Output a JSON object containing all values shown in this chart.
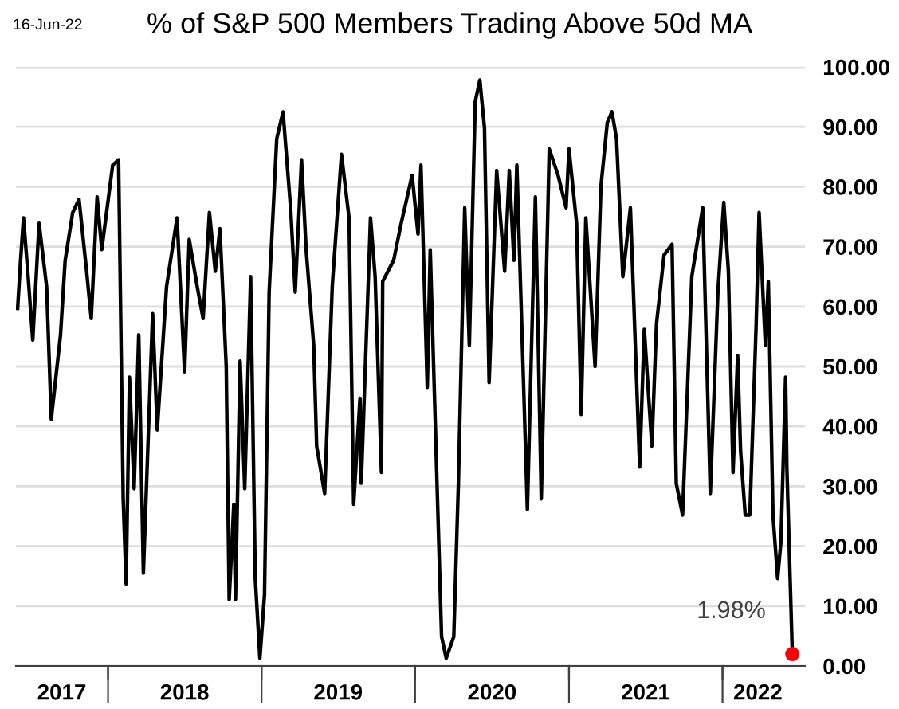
{
  "chart_data": {
    "type": "line",
    "title": "% of S&P 500 Members Trading Above 50d MA",
    "annotations": [
      "16-Jun-22",
      {
        "text": "1.98%",
        "x": "2022-06-16",
        "y": 1.98
      }
    ],
    "series": [
      {
        "color": "#000000",
        "x": [
          "2017-05-31",
          "2017-06-07",
          "2017-06-14",
          "2017-06-25",
          "2017-07-06",
          "2017-07-21",
          "2017-08-08",
          "2017-08-19",
          "2017-09-10",
          "2017-09-21",
          "2017-10-09",
          "2017-10-24",
          "2017-11-11",
          "2017-11-22",
          "2017-12-06",
          "2017-12-17",
          "2018-01-12",
          "2018-01-26",
          "2018-02-06",
          "2018-02-13",
          "2018-02-21",
          "2018-03-04",
          "2018-03-15",
          "2018-03-26",
          "2018-04-17",
          "2018-04-28",
          "2018-05-20",
          "2018-06-14",
          "2018-07-02",
          "2018-07-13",
          "2018-08-01",
          "2018-08-15",
          "2018-08-30",
          "2018-09-13",
          "2018-09-24",
          "2018-10-09",
          "2018-10-16",
          "2018-10-27",
          "2018-10-31",
          "2018-11-11",
          "2018-11-22",
          "2018-12-06",
          "2018-12-17",
          "2018-12-28",
          "2019-01-08",
          "2019-01-19",
          "2019-02-06",
          "2019-02-21",
          "2019-03-11",
          "2019-03-22",
          "2019-04-06",
          "2019-04-17",
          "2019-05-05",
          "2019-05-12",
          "2019-05-31",
          "2019-06-18",
          "2019-07-10",
          "2019-07-28",
          "2019-08-08",
          "2019-08-23",
          "2019-08-26",
          "2019-09-17",
          "2019-09-28",
          "2019-10-13",
          "2019-10-16",
          "2019-11-11",
          "2019-11-29",
          "2019-12-25",
          "2020-01-08",
          "2020-01-15",
          "2020-01-30",
          "2020-02-06",
          "2020-02-24",
          "2020-03-04",
          "2020-03-15",
          "2020-04-02",
          "2020-04-13",
          "2020-04-28",
          "2020-05-09",
          "2020-05-23",
          "2020-06-03",
          "2020-06-14",
          "2020-06-25",
          "2020-07-13",
          "2020-08-01",
          "2020-08-12",
          "2020-08-23",
          "2020-08-30",
          "2020-09-24",
          "2020-10-13",
          "2020-10-27",
          "2020-11-15",
          "2020-12-06",
          "2020-12-25",
          "2021-01-01",
          "2021-01-19",
          "2021-01-30",
          "2021-02-10",
          "2021-03-04",
          "2021-03-18",
          "2021-04-02",
          "2021-04-13",
          "2021-04-24",
          "2021-05-09",
          "2021-05-27",
          "2021-06-18",
          "2021-06-29",
          "2021-07-17",
          "2021-07-28",
          "2021-08-15",
          "2021-09-03",
          "2021-09-13",
          "2021-09-28",
          "2021-10-20",
          "2021-11-15",
          "2021-12-03",
          "2021-12-21",
          "2022-01-04",
          "2022-01-15",
          "2022-01-26",
          "2022-02-06",
          "2022-02-13",
          "2022-02-24",
          "2022-03-07",
          "2022-03-22",
          "2022-03-29",
          "2022-04-13",
          "2022-04-20",
          "2022-05-01",
          "2022-05-12",
          "2022-05-20",
          "2022-05-31",
          "2022-06-03",
          "2022-06-16"
        ],
        "values": [
          59.7,
          67.7,
          74.8,
          65,
          54.4,
          73.9,
          63.3,
          41.2,
          55.3,
          67.7,
          75.7,
          77.9,
          65.9,
          58,
          78.3,
          69.5,
          83.6,
          84.5,
          27.9,
          13.7,
          48.2,
          29.6,
          55.3,
          15.5,
          58.8,
          39.4,
          63.3,
          74.8,
          49.1,
          71.2,
          63.3,
          58,
          75.7,
          65.9,
          73,
          50,
          11.1,
          27,
          11.1,
          50.9,
          29.6,
          65,
          14.6,
          1.3,
          11.9,
          62.4,
          88,
          92.5,
          76.5,
          62.4,
          84.5,
          69.5,
          53.5,
          36.7,
          28.8,
          63.3,
          85.4,
          74.8,
          27,
          44.7,
          30.5,
          74.8,
          65,
          32.3,
          64.2,
          67.7,
          73.9,
          81.9,
          72.1,
          83.6,
          46.5,
          69.5,
          26.1,
          4.9,
          1.3,
          4.9,
          30.5,
          76.5,
          53.5,
          94.2,
          97.8,
          89.8,
          47.3,
          82.7,
          65.9,
          82.7,
          67.7,
          83.6,
          26.1,
          78.3,
          27.9,
          86.3,
          81.9,
          76.5,
          86.3,
          73.9,
          42,
          74.8,
          50,
          80.1,
          90.7,
          92.5,
          88,
          65,
          76.5,
          33.2,
          56.2,
          36.7,
          57.1,
          68.6,
          70.4,
          30.5,
          25.2,
          65,
          76.5,
          28.8,
          62.4,
          77.4,
          65.9,
          32.3,
          51.8,
          35.8,
          25.2,
          25.2,
          57.1,
          75.7,
          53.5,
          64.2,
          25.2,
          14.6,
          20.8,
          48.2,
          33.2,
          1.98
        ]
      },
      {
        "type": "scatter",
        "color": "#ff0000",
        "x": [
          "2022-06-16"
        ],
        "values": [
          1.98
        ]
      }
    ],
    "xlim": [
      "2017-05-27",
      "2022-07-16"
    ],
    "xticks": [
      {
        "value": "2017-09-13",
        "label": "2017"
      },
      {
        "value": "2018-01-01",
        "label": null
      },
      {
        "value": "2018-07-02",
        "label": "2018"
      },
      {
        "value": "2019-01-01",
        "label": null
      },
      {
        "value": "2019-07-02",
        "label": "2019"
      },
      {
        "value": "2020-01-01",
        "label": null
      },
      {
        "value": "2020-07-02",
        "label": "2020"
      },
      {
        "value": "2021-01-01",
        "label": null
      },
      {
        "value": "2021-07-02",
        "label": "2021"
      },
      {
        "value": "2022-01-01",
        "label": null
      },
      {
        "value": "2022-03-26",
        "label": "2022"
      }
    ],
    "ylim": [
      0,
      100
    ],
    "yticks": [
      {
        "value": 0,
        "label": "0.00"
      },
      {
        "value": 10,
        "label": "10.00"
      },
      {
        "value": 20,
        "label": "20.00"
      },
      {
        "value": 30,
        "label": "30.00"
      },
      {
        "value": 40,
        "label": "40.00"
      },
      {
        "value": 50,
        "label": "50.00"
      },
      {
        "value": 60,
        "label": "60.00"
      },
      {
        "value": 70,
        "label": "70.00"
      },
      {
        "value": 80,
        "label": "80.00"
      },
      {
        "value": 90,
        "label": "90.00"
      },
      {
        "value": 100,
        "label": "100.00"
      }
    ],
    "grid": "y"
  }
}
